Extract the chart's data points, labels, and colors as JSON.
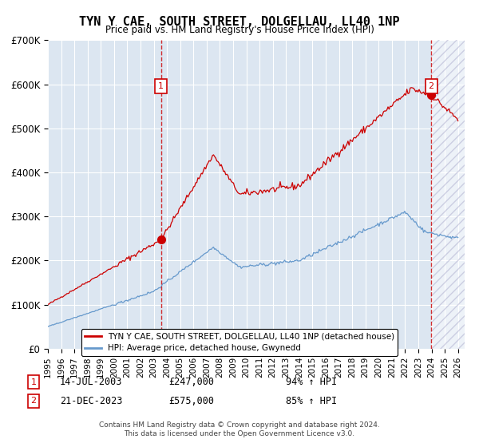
{
  "title": "TYN Y CAE, SOUTH STREET, DOLGELLAU, LL40 1NP",
  "subtitle": "Price paid vs. HM Land Registry's House Price Index (HPI)",
  "plot_bg_color": "#dce6f1",
  "red_line_color": "#cc0000",
  "blue_line_color": "#6699cc",
  "marker1_date_num": 2003.54,
  "marker1_value": 247000,
  "marker2_date_num": 2023.97,
  "marker2_value": 575000,
  "vline1_x": 2003.54,
  "vline2_x": 2023.97,
  "xmin": 1995.0,
  "xmax": 2026.5,
  "ymin": 0,
  "ymax": 700000,
  "yticks": [
    0,
    100000,
    200000,
    300000,
    400000,
    500000,
    600000,
    700000
  ],
  "ytick_labels": [
    "£0",
    "£100K",
    "£200K",
    "£300K",
    "£400K",
    "£500K",
    "£600K",
    "£700K"
  ],
  "xticks": [
    1995,
    1996,
    1997,
    1998,
    1999,
    2000,
    2001,
    2002,
    2003,
    2004,
    2005,
    2006,
    2007,
    2008,
    2009,
    2010,
    2011,
    2012,
    2013,
    2014,
    2015,
    2016,
    2017,
    2018,
    2019,
    2020,
    2021,
    2022,
    2023,
    2024,
    2025,
    2026
  ],
  "legend_line1": "TYN Y CAE, SOUTH STREET, DOLGELLAU, LL40 1NP (detached house)",
  "legend_line2": "HPI: Average price, detached house, Gwynedd",
  "note1_date": "14-JUL-2003",
  "note1_price": "£247,000",
  "note1_hpi": "94% ↑ HPI",
  "note2_date": "21-DEC-2023",
  "note2_price": "£575,000",
  "note2_hpi": "85% ↑ HPI",
  "footer": "Contains HM Land Registry data © Crown copyright and database right 2024.\nThis data is licensed under the Open Government Licence v3.0."
}
